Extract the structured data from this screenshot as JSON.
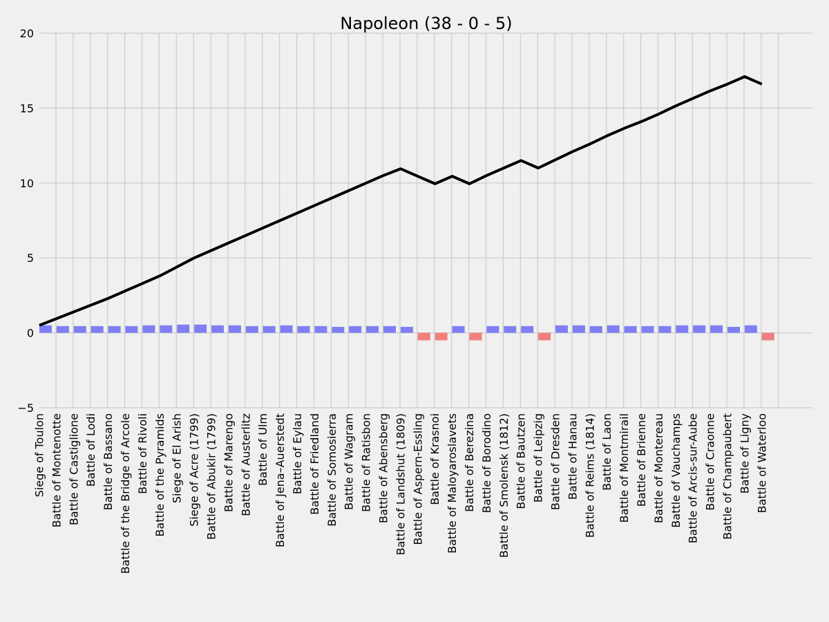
{
  "chart_data": {
    "type": "bar",
    "title": "Napoleon (38 - 0 - 5)",
    "xlabel": "",
    "ylabel": "",
    "ylim": [
      -5,
      20
    ],
    "yticks": [
      "−5",
      "0",
      "5",
      "10",
      "15",
      "20"
    ],
    "grid": true,
    "colors": {
      "background": "#f0f0f0",
      "grid": "#cbcbcb",
      "positive_bar": "#7f7ff5",
      "negative_bar": "#f27f7f",
      "line": "#000000"
    },
    "categories": [
      "Siege of Toulon",
      "Battle of Montenotte",
      "Battle of Castiglione",
      "Battle of Lodi",
      "Battle of Bassano",
      "Battle of the Bridge of Arcole",
      "Battle of Rivoli",
      "Battle of the Pyramids",
      "Siege of El Arish",
      "Siege of Acre (1799)",
      "Battle of Abukir (1799)",
      "Battle of Marengo",
      "Battle of Austerlitz",
      "Battle of Ulm",
      "Battle of Jena–Auerstedt",
      "Battle of Eylau",
      "Battle of Friedland",
      "Battle of Somosierra",
      "Battle of Wagram",
      "Battle of Ratisbon",
      "Battle of Abensberg",
      "Battle of Landshut (1809)",
      "Battle of Aspern-Essling",
      "Battle of Krasnoi",
      "Battle of Maloyaroslavets",
      "Battle of Berezina",
      "Battle of Borodino",
      "Battle of Smolensk (1812)",
      "Battle of Bautzen",
      "Battle of Leipzig",
      "Battle of Dresden",
      "Battle of Hanau",
      "Battle of Reims (1814)",
      "Battle of Laon",
      "Battle of Montmirail",
      "Battle of Brienne",
      "Battle of Montereau",
      "Battle of Vauchamps",
      "Battle of Arcis-sur-Aube",
      "Battle of Craonne",
      "Battle of Champaubert",
      "Battle of Ligny",
      "Battle of Waterloo"
    ],
    "series": [
      {
        "type": "bar",
        "values": [
          0.5,
          0.45,
          0.45,
          0.45,
          0.45,
          0.45,
          0.5,
          0.5,
          0.55,
          0.55,
          0.5,
          0.5,
          0.45,
          0.45,
          0.5,
          0.45,
          0.45,
          0.4,
          0.45,
          0.45,
          0.45,
          0.4,
          -0.5,
          -0.5,
          0.45,
          -0.5,
          0.45,
          0.45,
          0.45,
          -0.5,
          0.5,
          0.5,
          0.45,
          0.5,
          0.45,
          0.45,
          0.45,
          0.5,
          0.5,
          0.5,
          0.4,
          0.5,
          -0.5
        ]
      },
      {
        "type": "line",
        "values": [
          0.5,
          0.95,
          1.4,
          1.85,
          2.3,
          2.8,
          3.3,
          3.8,
          4.4,
          5.0,
          5.5,
          6.0,
          6.5,
          7.0,
          7.5,
          8.0,
          8.5,
          9.0,
          9.5,
          10.0,
          10.5,
          10.95,
          10.45,
          9.95,
          10.45,
          9.95,
          10.5,
          11.0,
          11.5,
          11.0,
          11.55,
          12.1,
          12.6,
          13.15,
          13.65,
          14.1,
          14.6,
          15.15,
          15.65,
          16.15,
          16.6,
          17.1,
          16.6
        ]
      }
    ]
  }
}
